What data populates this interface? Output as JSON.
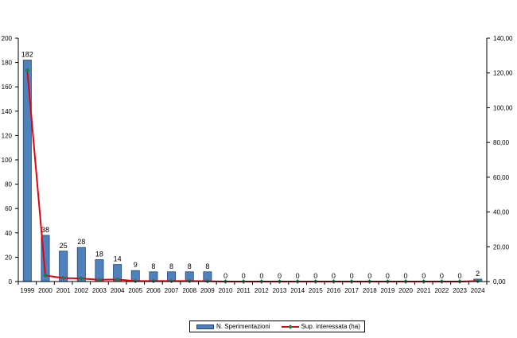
{
  "chart_data": {
    "type": "bar",
    "categories": [
      "1999",
      "2000",
      "2001",
      "2002",
      "2003",
      "2004",
      "2005",
      "2006",
      "2007",
      "2008",
      "2009",
      "2010",
      "2011",
      "2012",
      "2013",
      "2014",
      "2015",
      "2016",
      "2017",
      "2018",
      "2019",
      "2020",
      "2021",
      "2022",
      "2023",
      "2024"
    ],
    "series": [
      {
        "name": "N. Sperimentazioni",
        "type": "bar",
        "axis": "left",
        "color": "#4f81bd",
        "values": [
          182,
          38,
          25,
          28,
          18,
          14,
          9,
          8,
          8,
          8,
          8,
          0,
          0,
          0,
          0,
          0,
          0,
          0,
          0,
          0,
          0,
          0,
          0,
          0,
          0,
          2
        ]
      },
      {
        "name": "Sup. interessata (ha)",
        "type": "line",
        "axis": "right",
        "color": "#e8000b",
        "marker_color": "#1f7a4d",
        "values": [
          121.5,
          3.5,
          2.0,
          1.8,
          1.0,
          1.2,
          0.3,
          0.3,
          0.3,
          0.3,
          0.2,
          0,
          0,
          0,
          0,
          0,
          0,
          0,
          0,
          0,
          0,
          0,
          0,
          0,
          0,
          0.3
        ]
      }
    ],
    "ylim": [
      0,
      200
    ],
    "y_ticks": [
      "0",
      "20",
      "40",
      "60",
      "80",
      "100",
      "120",
      "140",
      "160",
      "180",
      "200"
    ],
    "y2lim": [
      0,
      140
    ],
    "y2_ticks": [
      "0,00",
      "20,00",
      "40,00",
      "60,00",
      "80,00",
      "100,00",
      "120,00",
      "140,00"
    ],
    "data_labels": [
      "182",
      "38",
      "25",
      "28",
      "18",
      "14",
      "9",
      "8",
      "8",
      "8",
      "8",
      "0",
      "0",
      "0",
      "0",
      "0",
      "0",
      "0",
      "0",
      "0",
      "0",
      "0",
      "0",
      "0",
      "0",
      "2"
    ],
    "title": "",
    "xlabel": "",
    "ylabel": "",
    "grid": false,
    "legend": "bottom"
  }
}
